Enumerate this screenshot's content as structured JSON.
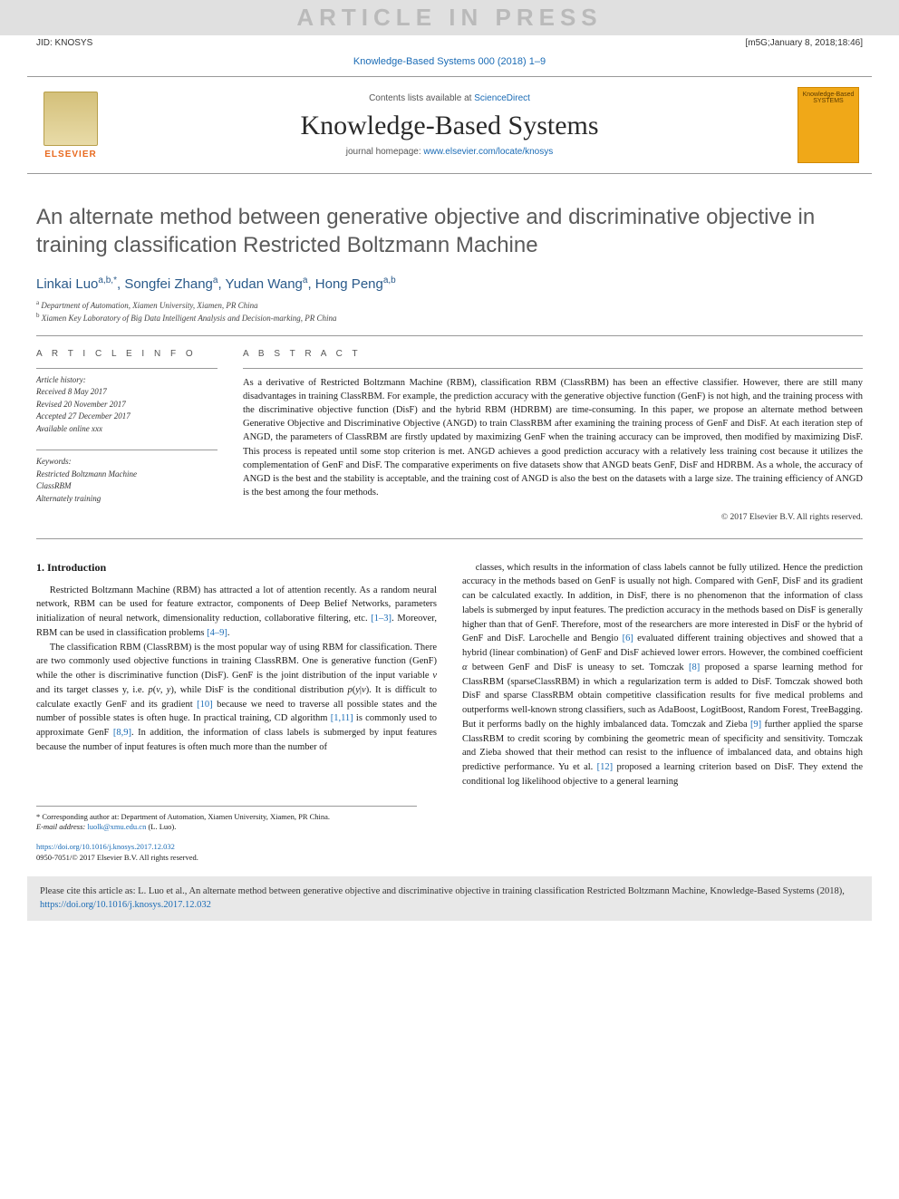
{
  "banner": {
    "text": "ARTICLE IN PRESS"
  },
  "meta_row": {
    "left": "JID: KNOSYS",
    "right": "[m5G;January 8, 2018;18:46]"
  },
  "journal_ref": {
    "prefix": "Knowledge-Based Systems 000 (2018) 1–9",
    "href": "#"
  },
  "header": {
    "contents_prefix": "Contents lists available at ",
    "contents_link": "ScienceDirect",
    "journal_name": "Knowledge-Based Systems",
    "homepage_prefix": "journal homepage: ",
    "homepage_link": "www.elsevier.com/locate/knosys",
    "elsevier_label": "ELSEVIER",
    "kbs_badge_text": "Knowledge-Based SYSTEMS"
  },
  "title": "An alternate method between generative objective and discriminative objective in training classification Restricted Boltzmann Machine",
  "authors_html": "Linkai Luo|a,b,*|, Songfei Zhang|a|, Yudan Wang|a|, Hong Peng|a,b|",
  "authors": [
    {
      "name": "Linkai Luo",
      "sup": "a,b,*"
    },
    {
      "name": "Songfei Zhang",
      "sup": "a"
    },
    {
      "name": "Yudan Wang",
      "sup": "a"
    },
    {
      "name": "Hong Peng",
      "sup": "a,b"
    }
  ],
  "affiliations": [
    {
      "sup": "a",
      "text": "Department of Automation, Xiamen University, Xiamen, PR China"
    },
    {
      "sup": "b",
      "text": "Xiamen Key Laboratory of Big Data Intelligent Analysis and Decision-marking, PR China"
    }
  ],
  "article_info": {
    "label": "A R T I C L E   I N F O",
    "history_label": "Article history:",
    "history": [
      "Received 8 May 2017",
      "Revised 20 November 2017",
      "Accepted 27 December 2017",
      "Available online xxx"
    ],
    "keywords_label": "Keywords:",
    "keywords": [
      "Restricted Boltzmann Machine",
      "ClassRBM",
      "Alternately training"
    ]
  },
  "abstract": {
    "label": "A B S T R A C T",
    "text": "As a derivative of Restricted Boltzmann Machine (RBM), classification RBM (ClassRBM) has been an effective classifier. However, there are still many disadvantages in training ClassRBM. For example, the prediction accuracy with the generative objective function (GenF) is not high, and the training process with the discriminative objective function (DisF) and the hybrid RBM (HDRBM) are time-consuming. In this paper, we propose an alternate method between Generative Objective and Discriminative Objective (ANGD) to train ClassRBM after examining the training process of GenF and DisF. At each iteration step of ANGD, the parameters of ClassRBM are firstly updated by maximizing GenF when the training accuracy can be improved, then modified by maximizing DisF. This process is repeated until some stop criterion is met. ANGD achieves a good prediction accuracy with a relatively less training cost because it utilizes the complementation of GenF and DisF. The comparative experiments on five datasets show that ANGD beats GenF, DisF and HDRBM. As a whole, the accuracy of ANGD is the best and the stability is acceptable, and the training cost of ANGD is also the best on the datasets with a large size. The training efficiency of ANGD is the best among the four methods.",
    "copyright": "© 2017 Elsevier B.V. All rights reserved."
  },
  "section1": {
    "heading": "1. Introduction",
    "col1_paragraphs": [
      "Restricted Boltzmann Machine (RBM) has attracted a lot of attention recently. As a random neural network, RBM can be used for feature extractor, components of Deep Belief Networks, parameters initialization of neural network, dimensionality reduction, collaborative filtering, etc. [1–3]. Moreover, RBM can be used in classification problems [4–9].",
      "The classification RBM (ClassRBM) is the most popular way of using RBM for classification. There are two commonly used objective functions in training ClassRBM. One is generative function (GenF) while the other is discriminative function (DisF). GenF is the joint distribution of the input variable v and its target classes y, i.e. p(v, y), while DisF is the conditional distribution p(y|v). It is difficult to calculate exactly GenF and its gradient [10] because we need to traverse all possible states and the number of possible states is often huge. In practical training, CD algorithm [1,11] is commonly used to approximate GenF [8,9]. In addition, the information of class labels is submerged by input features because the number of input features is often much more than the number of"
    ],
    "col2_paragraphs": [
      "classes, which results in the information of class labels cannot be fully utilized. Hence the prediction accuracy in the methods based on GenF is usually not high. Compared with GenF, DisF and its gradient can be calculated exactly. In addition, in DisF, there is no phenomenon that the information of class labels is submerged by input features. The prediction accuracy in the methods based on DisF is generally higher than that of GenF. Therefore, most of the researchers are more interested in DisF or the hybrid of GenF and DisF. Larochelle and Bengio [6] evaluated different training objectives and showed that a hybrid (linear combination) of GenF and DisF achieved lower errors. However, the combined coefficient α between GenF and DisF is uneasy to set. Tomczak [8] proposed a sparse learning method for ClassRBM (sparseClassRBM) in which a regularization term is added to DisF. Tomczak showed both DisF and sparse ClassRBM obtain competitive classification results for five medical problems and outperforms well-known strong classifiers, such as AdaBoost, LogitBoost, Random Forest, TreeBagging. But it performs badly on the highly imbalanced data. Tomczak and Zieba [9] further applied the sparse ClassRBM to credit scoring by combining the geometric mean of specificity and sensitivity. Tomczak and Zieba showed that their method can resist to the influence of imbalanced data, and obtains high predictive performance. Yu et al. [12] proposed a learning criterion based on DisF. They extend the conditional log likelihood objective to a general learning"
    ]
  },
  "footnote": {
    "corr": "* Corresponding author at: Department of Automation, Xiamen University, Xiamen, PR China.",
    "email_label": "E-mail address:",
    "email": "luolk@xmu.edu.cn",
    "email_suffix": "(L. Luo)."
  },
  "doi": {
    "link": "https://doi.org/10.1016/j.knosys.2017.12.032",
    "line2": "0950-7051/© 2017 Elsevier B.V. All rights reserved."
  },
  "cite_box": {
    "text": "Please cite this article as: L. Luo et al., An alternate method between generative objective and discriminative objective in training classification Restricted Boltzmann Machine, Knowledge-Based Systems (2018), ",
    "link": "https://doi.org/10.1016/j.knosys.2017.12.032"
  },
  "colors": {
    "link": "#1a6bb5",
    "banner_bg": "#e0e0e0",
    "banner_fg": "#bababa",
    "citebox_bg": "#e8e8e8",
    "elsevier_orange": "#e86a1f",
    "kbs_badge": "#f0a818"
  }
}
